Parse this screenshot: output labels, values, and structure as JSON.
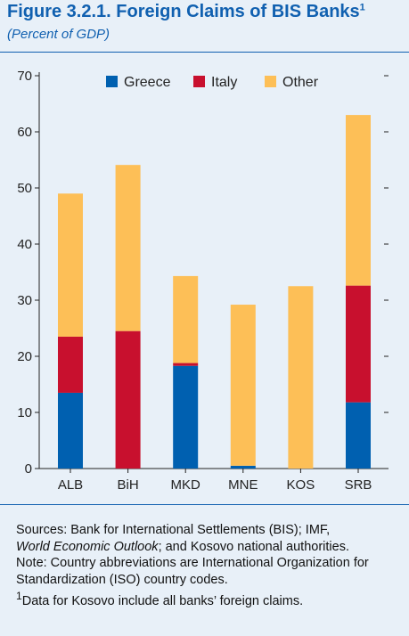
{
  "title_text": "Figure 3.2.1. Foreign Claims of BIS Banks",
  "title_sup": "1",
  "subtitle": "(Percent of GDP)",
  "chart_data": {
    "type": "bar",
    "stacked": true,
    "title": "Figure 3.2.1. Foreign Claims of BIS Banks",
    "subtitle": "(Percent of GDP)",
    "categories": [
      "ALB",
      "BiH",
      "MKD",
      "MNE",
      "KOS",
      "SRB"
    ],
    "series": [
      {
        "name": "Greece",
        "color": "#0060b0",
        "values": [
          13.5,
          0,
          18.3,
          0.5,
          0,
          11.8
        ]
      },
      {
        "name": "Italy",
        "color": "#c8102e",
        "values": [
          10.0,
          24.5,
          0.5,
          0,
          0,
          20.8
        ]
      },
      {
        "name": "Other",
        "color": "#fdbf57",
        "values": [
          25.5,
          29.6,
          15.5,
          28.7,
          32.5,
          30.4
        ]
      }
    ],
    "ylim": [
      0,
      70
    ],
    "yticks": [
      0,
      10,
      20,
      30,
      40,
      50,
      60,
      70
    ],
    "grid": false,
    "legend": "top"
  },
  "footnotes": {
    "sources_1": "Sources: Bank for International Settlements (BIS); IMF,",
    "sources_italic": "World Economic Outlook",
    "sources_2": "; and Kosovo national authorities.",
    "note": "Note: Country abbreviations are International Organization for Standardization (ISO) country codes.",
    "fn_mark": "1",
    "fn_text": "Data for Kosovo include all banks’ foreign claims."
  }
}
